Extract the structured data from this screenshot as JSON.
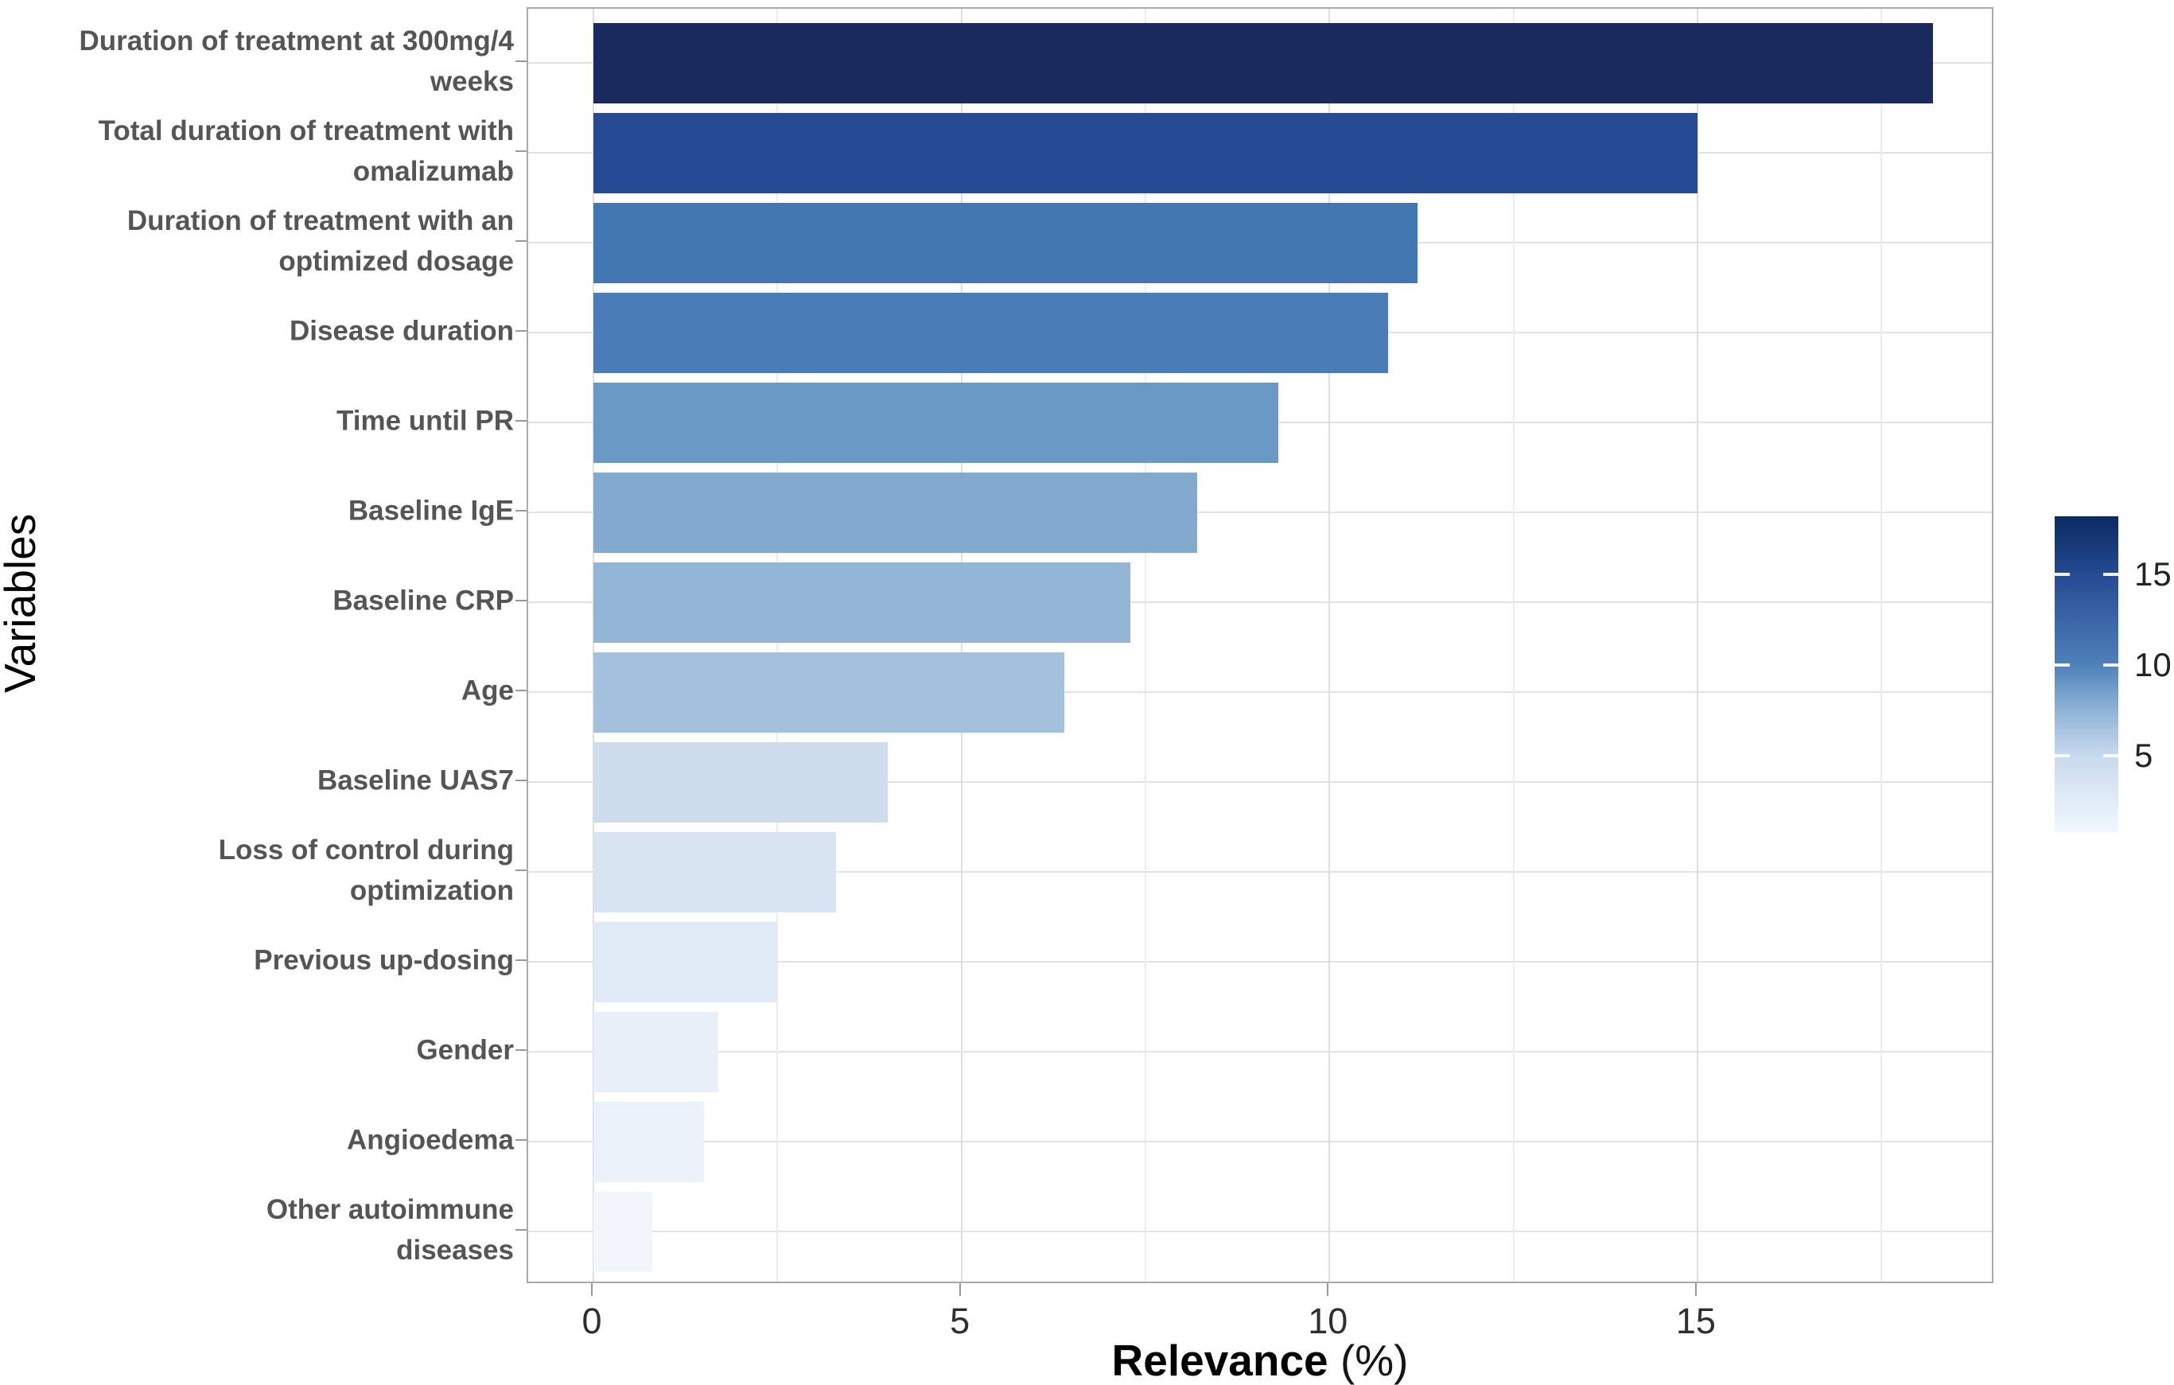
{
  "figure": {
    "background": "#ffffff",
    "xlabel": "Relevance (%)",
    "xlabel_main": "Relevance",
    "xlabel_unit": "(%)",
    "ylabel": "Variables"
  },
  "chart_data": {
    "type": "bar",
    "orientation": "horizontal",
    "title": "",
    "xlabel": "Relevance (%)",
    "ylabel": "Variables",
    "xlim": [
      -0.9,
      19.0
    ],
    "x_major_ticks": [
      0,
      5,
      10,
      15
    ],
    "x_minor_ticks": [
      2.5,
      7.5,
      12.5,
      17.5
    ],
    "grid": "vertical major+minor, horizontal major at category centers",
    "categories": [
      "Duration of treatment at 300mg/4 weeks",
      "Total duration of treatment with omalizumab",
      "Duration of treatment with an optimized dosage",
      "Disease duration",
      "Time until PR",
      "Baseline IgE",
      "Baseline CRP",
      "Age",
      "Baseline UAS7",
      "Loss of control during optimization",
      "Previous up-dosing",
      "Gender",
      "Angioedema",
      "Other autoimmune diseases"
    ],
    "values": [
      18.2,
      15.0,
      11.2,
      10.8,
      9.3,
      8.2,
      7.3,
      6.4,
      4.0,
      3.3,
      2.5,
      1.7,
      1.5,
      0.8
    ],
    "bars": [
      {
        "slug": "duration-300mg-4-weeks",
        "label_lines": [
          "Duration of treatment at 300mg/4",
          "weeks"
        ],
        "value": 18.2,
        "color": "#182a5e"
      },
      {
        "slug": "total-duration-omalizumab",
        "label_lines": [
          "Total duration of treatment with",
          "omalizumab"
        ],
        "value": 15.0,
        "color": "#264a93"
      },
      {
        "slug": "optimized-dosage-duration",
        "label_lines": [
          "Duration of treatment with an",
          "optimized dosage"
        ],
        "value": 11.2,
        "color": "#4377b2"
      },
      {
        "slug": "disease-duration",
        "label_lines": [
          "Disease duration"
        ],
        "value": 10.8,
        "color": "#4a7db7"
      },
      {
        "slug": "time-until-pr",
        "label_lines": [
          "Time until PR"
        ],
        "value": 9.3,
        "color": "#6b99c6"
      },
      {
        "slug": "baseline-ige",
        "label_lines": [
          "Baseline IgE"
        ],
        "value": 8.2,
        "color": "#82aacf"
      },
      {
        "slug": "baseline-crp",
        "label_lines": [
          "Baseline CRP"
        ],
        "value": 7.3,
        "color": "#93b6d7"
      },
      {
        "slug": "age",
        "label_lines": [
          "Age"
        ],
        "value": 6.4,
        "color": "#a3c1dd"
      },
      {
        "slug": "baseline-uas7",
        "label_lines": [
          "Baseline UAS7"
        ],
        "value": 4.0,
        "color": "#cdddee"
      },
      {
        "slug": "loss-of-control-optimization",
        "label_lines": [
          "Loss of control during",
          "optimization"
        ],
        "value": 3.3,
        "color": "#d8e4f2"
      },
      {
        "slug": "previous-up-dosing",
        "label_lines": [
          "Previous up-dosing"
        ],
        "value": 2.5,
        "color": "#e0eaf6"
      },
      {
        "slug": "gender",
        "label_lines": [
          "Gender"
        ],
        "value": 1.7,
        "color": "#e8eff8"
      },
      {
        "slug": "angioedema",
        "label_lines": [
          "Angioedema"
        ],
        "value": 1.5,
        "color": "#eaf1f9"
      },
      {
        "slug": "other-autoimmune-diseases",
        "label_lines": [
          "Other autoimmune",
          "diseases"
        ],
        "value": 0.8,
        "color": "#f0f6fc"
      }
    ],
    "legend": {
      "type": "colorbar",
      "position": "right",
      "value_max": 18.2,
      "value_min": 0.8,
      "tick_values": [
        15,
        10,
        5
      ],
      "tick_labels": [
        "15",
        "10",
        "5"
      ],
      "gradient_stops": [
        {
          "value": 18.2,
          "color": "#0a2b62"
        },
        {
          "value": 15.0,
          "color": "#264a93"
        },
        {
          "value": 10.0,
          "color": "#4f81ba"
        },
        {
          "value": 7.5,
          "color": "#8fb3d6"
        },
        {
          "value": 5.0,
          "color": "#c8daed"
        },
        {
          "value": 0.8,
          "color": "#f2f7fd"
        }
      ]
    }
  }
}
